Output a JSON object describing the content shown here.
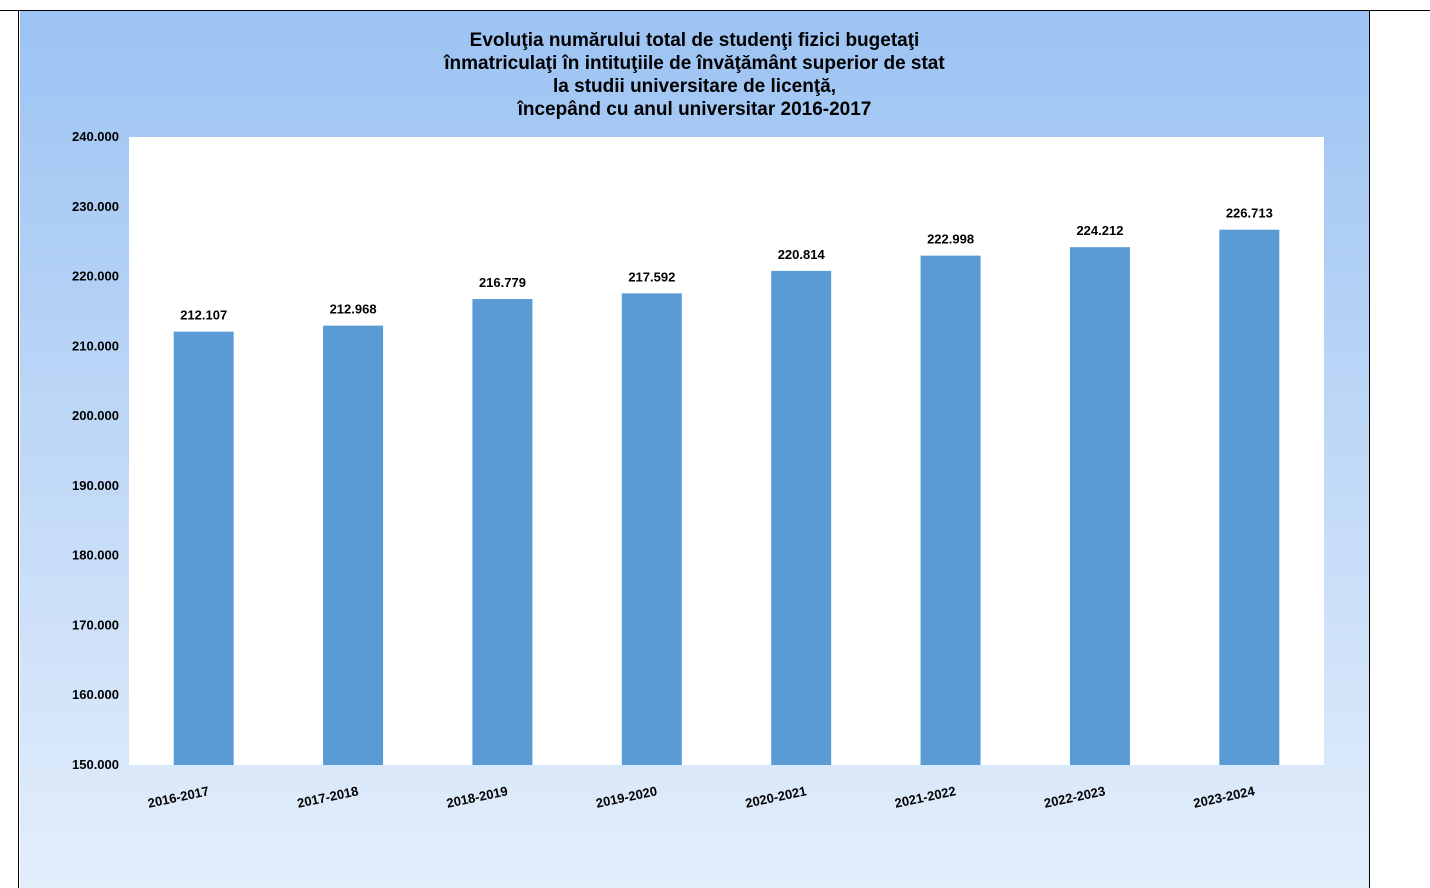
{
  "chart_data": {
    "type": "bar",
    "title_lines": [
      "Evoluţia numărului total de studenţi fizici bugetaţi",
      "înmatriculaţi în intituţiile de învăţământ superior de stat",
      "la studii universitare de licenţă,",
      "începând cu anul universitar 2016-2017"
    ],
    "categories": [
      "2016-2017",
      "2017-2018",
      "2018-2019",
      "2019-2020",
      "2020-2021",
      "2021-2022",
      "2022-2023",
      "2023-2024"
    ],
    "values": [
      212107,
      212968,
      216779,
      217592,
      220814,
      222998,
      224212,
      226713
    ],
    "value_labels": [
      "212.107",
      "212.968",
      "216.779",
      "217.592",
      "220.814",
      "222.998",
      "224.212",
      "226.713"
    ],
    "ylim": [
      150000,
      240000
    ],
    "yticks": [
      150000,
      160000,
      170000,
      180000,
      190000,
      200000,
      210000,
      220000,
      230000,
      240000
    ],
    "ytick_labels": [
      "150.000",
      "160.000",
      "170.000",
      "180.000",
      "190.000",
      "200.000",
      "210.000",
      "220.000",
      "230.000",
      "240.000"
    ],
    "xlabel": "",
    "ylabel": "",
    "grid": false,
    "bar_color": "#5b9bd5"
  }
}
